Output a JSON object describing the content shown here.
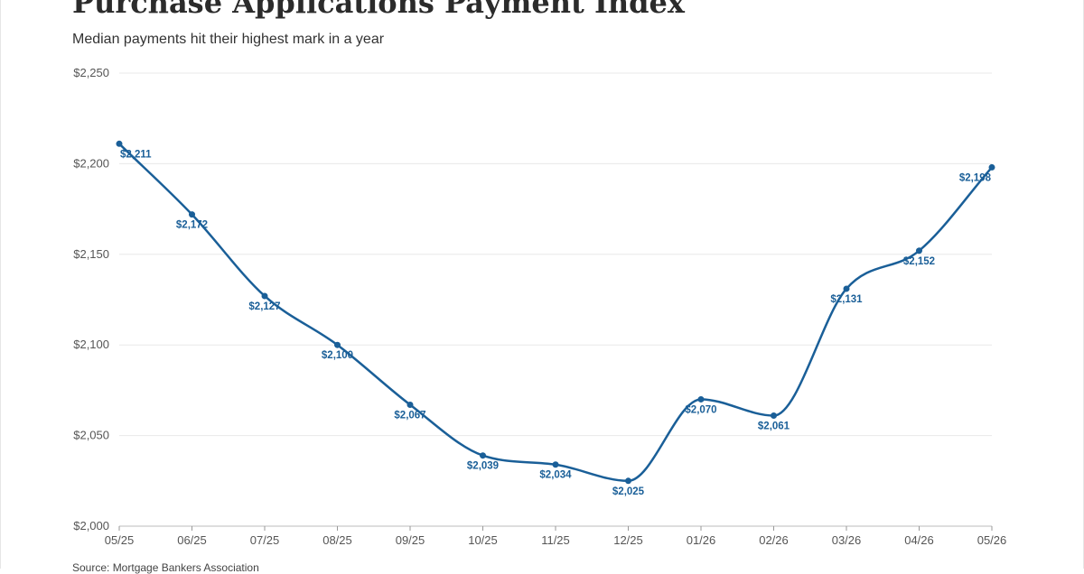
{
  "header": {
    "title": "Purchase Applications Payment Index",
    "subtitle": "Median payments hit their highest mark in a year"
  },
  "footer": {
    "source": "Source: Mortgage Bankers Association"
  },
  "colors": {
    "line": "#1a5f98",
    "grid": "#e8e8e8",
    "axis_text": "#555555"
  },
  "chart_data": {
    "type": "line",
    "title": "Purchase Applications Payment Index",
    "subtitle": "Median payments hit their highest mark in a year",
    "xlabel": "",
    "ylabel": "",
    "categories": [
      "05/25",
      "06/25",
      "07/25",
      "08/25",
      "09/25",
      "10/25",
      "11/25",
      "12/25",
      "01/26",
      "02/26",
      "03/26",
      "04/26",
      "05/26"
    ],
    "series": [
      {
        "values": [
          2211,
          2172,
          2127,
          2100,
          2067,
          2039,
          2034,
          2025,
          2070,
          2061,
          2131,
          2152,
          2198
        ]
      }
    ],
    "data_labels": [
      "$2,211",
      "$2,172",
      "$2,127",
      "$2,100",
      "$2,067",
      "$2,039",
      "$2,034",
      "$2,025",
      "$2,070",
      "$2,061",
      "$2,131",
      "$2,152",
      "$2,198"
    ],
    "y_ticks": [
      2000,
      2050,
      2100,
      2150,
      2200,
      2250
    ],
    "y_tick_labels": [
      "$2,000",
      "$2,050",
      "$2,100",
      "$2,150",
      "$2,200",
      "$2,250"
    ],
    "ylim": [
      2000,
      2250
    ],
    "grid": true,
    "legend": "none"
  }
}
